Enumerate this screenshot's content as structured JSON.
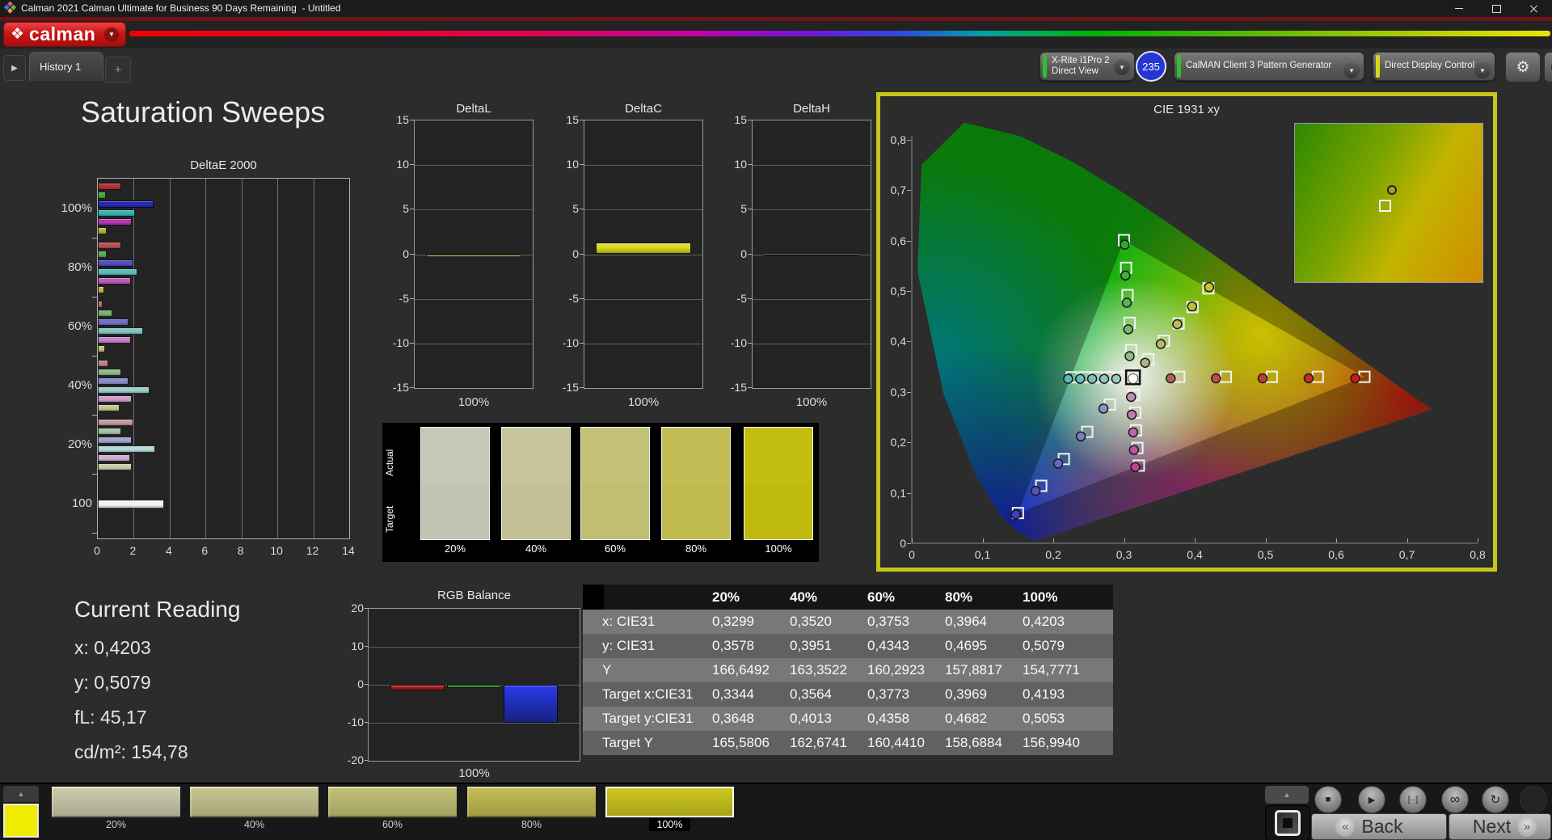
{
  "window": {
    "title": "Calman 2021 Calman Ultimate for Business 90 Days Remaining  - Untitled"
  },
  "brand": {
    "logo_text": "calman"
  },
  "tab_bar": {
    "history_tab": "History 1",
    "add_tab": "+"
  },
  "toolbar": {
    "meter": {
      "line1": "X-Rite i1Pro 2",
      "line2": "Direct View",
      "status_color": "#2fbf2f"
    },
    "meter_badge": "235",
    "pattern_generator": {
      "label": "CalMAN Client 3 Pattern Generator",
      "status_color": "#2fbf2f"
    },
    "display_control": {
      "label": "Direct Display Control",
      "status_color": "#d8d818"
    }
  },
  "page": {
    "title": "Saturation Sweeps"
  },
  "chart_data": [
    {
      "id": "deltaE2000",
      "type": "bar",
      "orientation": "horizontal",
      "title": "DeltaE 2000",
      "xlim": [
        0,
        14
      ],
      "xticks": [
        0,
        2,
        4,
        6,
        8,
        10,
        12,
        14
      ],
      "groups": [
        {
          "label": "100%",
          "bars": [
            {
              "c": "#b23535",
              "v": 1.3
            },
            {
              "c": "#3eae3e",
              "v": 0.45
            },
            {
              "c": "#2828b6",
              "v": 3.1
            },
            {
              "c": "#36b6b6",
              "v": 2.05
            },
            {
              "c": "#b636b6",
              "v": 1.9
            },
            {
              "c": "#b2b23c",
              "v": 0.5
            }
          ]
        },
        {
          "label": "80%",
          "bars": [
            {
              "c": "#b75353",
              "v": 1.3
            },
            {
              "c": "#58b158",
              "v": 0.5
            },
            {
              "c": "#5050c0",
              "v": 2.0
            },
            {
              "c": "#5cc0c0",
              "v": 2.2
            },
            {
              "c": "#c05cc0",
              "v": 1.85
            },
            {
              "c": "#b9b95c",
              "v": 0.35
            }
          ]
        },
        {
          "label": "60%",
          "bars": [
            {
              "c": "#b96c6c",
              "v": 0.25
            },
            {
              "c": "#73b573",
              "v": 0.8
            },
            {
              "c": "#7070c6",
              "v": 1.7
            },
            {
              "c": "#82c6c6",
              "v": 2.5
            },
            {
              "c": "#c682c6",
              "v": 1.85
            },
            {
              "c": "#bfbf76",
              "v": 0.4
            }
          ]
        },
        {
          "label": "40%",
          "bars": [
            {
              "c": "#bc8484",
              "v": 0.6
            },
            {
              "c": "#8dbc8d",
              "v": 1.3
            },
            {
              "c": "#8c8ccc",
              "v": 1.7
            },
            {
              "c": "#9ecfcf",
              "v": 2.9
            },
            {
              "c": "#cf9ecf",
              "v": 1.9
            },
            {
              "c": "#c5c58f",
              "v": 1.2
            }
          ]
        },
        {
          "label": "20%",
          "bars": [
            {
              "c": "#c49b9b",
              "v": 2.0
            },
            {
              "c": "#a5c3a5",
              "v": 1.3
            },
            {
              "c": "#a4a4d4",
              "v": 1.9
            },
            {
              "c": "#b7dada",
              "v": 3.2
            },
            {
              "c": "#d4aed4",
              "v": 1.8
            },
            {
              "c": "#cbcba6",
              "v": 1.9
            }
          ]
        },
        {
          "label": "100",
          "bars": [
            {
              "c": "#f2f2f2",
              "v": 3.7
            }
          ]
        }
      ]
    },
    {
      "id": "deltaL",
      "type": "bar",
      "title": "DeltaL",
      "ylim": [
        -15,
        15
      ],
      "yticks": [
        15,
        10,
        5,
        0,
        -5,
        -10,
        -15
      ],
      "category": "100%",
      "value": -0.3,
      "color": "#d2d21e"
    },
    {
      "id": "deltaC",
      "type": "bar",
      "title": "DeltaC",
      "ylim": [
        -15,
        15
      ],
      "yticks": [
        15,
        10,
        5,
        0,
        -5,
        -10,
        -15
      ],
      "category": "100%",
      "value": 1.3,
      "color": "#d2d21e"
    },
    {
      "id": "deltaH",
      "type": "bar",
      "title": "DeltaH",
      "ylim": [
        -15,
        15
      ],
      "yticks": [
        15,
        10,
        5,
        0,
        -5,
        -10,
        -15
      ],
      "category": "100%",
      "value": 0.0,
      "color": "#151515"
    },
    {
      "id": "cie1931",
      "type": "scatter",
      "title": "CIE 1931 xy",
      "xlim": [
        0,
        0.8
      ],
      "ylim": [
        0,
        0.8
      ],
      "xticks": [
        "0",
        "0,1",
        "0,2",
        "0,3",
        "0,4",
        "0,5",
        "0,6",
        "0,7",
        "0,8"
      ],
      "yticks": [
        "0,8",
        "0,7",
        "0,6",
        "0,5",
        "0,4",
        "0,3",
        "0,2",
        "0,1",
        "0"
      ],
      "gamut_triangle": [
        [
          0.64,
          0.33
        ],
        [
          0.3,
          0.6
        ],
        [
          0.15,
          0.06
        ]
      ],
      "white_point": {
        "target": [
          0.3127,
          0.329
        ],
        "measured": [
          0.3129,
          0.3264
        ]
      },
      "sweeps": [
        {
          "name": "red",
          "targets": [
            [
              0.378,
              0.33
            ],
            [
              0.444,
              0.33
            ],
            [
              0.509,
              0.33
            ],
            [
              0.574,
              0.33
            ],
            [
              0.64,
              0.33
            ]
          ],
          "measured": [
            [
              0.366,
              0.327
            ],
            [
              0.43,
              0.327
            ],
            [
              0.496,
              0.327
            ],
            [
              0.561,
              0.327
            ],
            [
              0.627,
              0.327
            ]
          ],
          "colors": [
            "#b46060",
            "#ba4e4e",
            "#c03c3c",
            "#c62a2a",
            "#cc1818"
          ]
        },
        {
          "name": "green",
          "targets": [
            [
              0.31,
              0.383
            ],
            [
              0.308,
              0.437
            ],
            [
              0.305,
              0.492
            ],
            [
              0.303,
              0.546
            ],
            [
              0.3,
              0.601
            ]
          ],
          "measured": [
            [
              0.308,
              0.371
            ],
            [
              0.306,
              0.424
            ],
            [
              0.304,
              0.477
            ],
            [
              0.302,
              0.531
            ],
            [
              0.301,
              0.592
            ]
          ],
          "colors": [
            "#8cbe8c",
            "#70ba70",
            "#54b654",
            "#38b238",
            "#26ae26"
          ]
        },
        {
          "name": "blue",
          "targets": [
            [
              0.28,
              0.275
            ],
            [
              0.248,
              0.221
            ],
            [
              0.215,
              0.167
            ],
            [
              0.183,
              0.114
            ],
            [
              0.15,
              0.06
            ]
          ],
          "measured": [
            [
              0.271,
              0.267
            ],
            [
              0.239,
              0.212
            ],
            [
              0.207,
              0.158
            ],
            [
              0.175,
              0.104
            ],
            [
              0.147,
              0.057
            ]
          ],
          "colors": [
            "#9090cc",
            "#7c7cc8",
            "#6868c4",
            "#5454c0",
            "#4040bc"
          ]
        },
        {
          "name": "cyan",
          "targets": [
            [
              0.295,
              0.329
            ],
            [
              0.278,
              0.329
            ],
            [
              0.261,
              0.329
            ],
            [
              0.244,
              0.329
            ],
            [
              0.226,
              0.329
            ]
          ],
          "measured": [
            [
              0.289,
              0.326
            ],
            [
              0.272,
              0.326
            ],
            [
              0.255,
              0.326
            ],
            [
              0.238,
              0.326
            ],
            [
              0.221,
              0.326
            ]
          ],
          "colors": [
            "#a2c8c4",
            "#90c4c0",
            "#7ec0bc",
            "#6cbcb8",
            "#5ab8b4"
          ]
        },
        {
          "name": "magenta",
          "targets": [
            [
              0.314,
              0.294
            ],
            [
              0.316,
              0.259
            ],
            [
              0.317,
              0.224
            ],
            [
              0.319,
              0.189
            ],
            [
              0.321,
              0.154
            ]
          ],
          "measured": [
            [
              0.31,
              0.29
            ],
            [
              0.311,
              0.255
            ],
            [
              0.313,
              0.22
            ],
            [
              0.314,
              0.185
            ],
            [
              0.316,
              0.151
            ]
          ],
          "colors": [
            "#c28eb6",
            "#c27ab0",
            "#c266aa",
            "#c252a4",
            "#c23e9e"
          ]
        },
        {
          "name": "yellow",
          "targets": [
            [
              0.3344,
              0.3648
            ],
            [
              0.3564,
              0.4013
            ],
            [
              0.3773,
              0.4358
            ],
            [
              0.3969,
              0.4682
            ],
            [
              0.4193,
              0.5053
            ]
          ],
          "measured": [
            [
              0.3299,
              0.3578
            ],
            [
              0.352,
              0.3951
            ],
            [
              0.3753,
              0.4343
            ],
            [
              0.3964,
              0.4695
            ],
            [
              0.4203,
              0.5079
            ]
          ],
          "colors": [
            "#b4b47e",
            "#b8b868",
            "#bcbc52",
            "#c0c03c",
            "#c6c626"
          ]
        }
      ],
      "inset": {
        "target": [
          0.4193,
          0.5053
        ],
        "measured": [
          0.4203,
          0.5079
        ],
        "measured_color": "#b0a020"
      }
    },
    {
      "id": "rgb_balance",
      "type": "bar",
      "title": "RGB Balance",
      "ylim": [
        -20,
        20
      ],
      "yticks": [
        20,
        10,
        0,
        -10,
        -20
      ],
      "categories": [
        "Red",
        "Green",
        "Blue"
      ],
      "values": [
        -1.5,
        -0.8,
        -10
      ],
      "colors": [
        "#d42020",
        "#28b028",
        "#2a3cec"
      ],
      "xlabel": "100%"
    }
  ],
  "swatch_strip": {
    "row_labels": [
      "Actual",
      "Target"
    ],
    "items": [
      {
        "label": "20%",
        "actual": "#c6c7b6",
        "target": "#c3c4b1"
      },
      {
        "label": "40%",
        "actual": "#c6c49a",
        "target": "#c3c195"
      },
      {
        "label": "60%",
        "actual": "#c3c277",
        "target": "#c0bf71"
      },
      {
        "label": "80%",
        "actual": "#c2be55",
        "target": "#bfbb4f"
      },
      {
        "label": "100%",
        "actual": "#c3bd12",
        "target": "#c0ba0e"
      }
    ]
  },
  "current_reading": {
    "title": "Current Reading",
    "lines": [
      "x: 0,4203",
      "y: 0,5079",
      "fL: 45,17",
      "cd/m²: 154,78"
    ]
  },
  "table": {
    "columns": [
      "20%",
      "40%",
      "60%",
      "80%",
      "100%"
    ],
    "rows": [
      {
        "label": "x: CIE31",
        "values": [
          "0,3299",
          "0,3520",
          "0,3753",
          "0,3964",
          "0,4203"
        ]
      },
      {
        "label": "y: CIE31",
        "values": [
          "0,3578",
          "0,3951",
          "0,4343",
          "0,4695",
          "0,5079"
        ]
      },
      {
        "label": "Y",
        "values": [
          "166,6492",
          "163,3522",
          "160,2923",
          "157,8817",
          "154,7771"
        ]
      },
      {
        "label": "Target x:CIE31",
        "values": [
          "0,3344",
          "0,3564",
          "0,3773",
          "0,3969",
          "0,4193"
        ]
      },
      {
        "label": "Target y:CIE31",
        "values": [
          "0,3648",
          "0,4013",
          "0,4358",
          "0,4682",
          "0,5053"
        ]
      },
      {
        "label": "Target Y",
        "values": [
          "165,5806",
          "162,6741",
          "160,4410",
          "158,6884",
          "156,9940"
        ]
      }
    ]
  },
  "bottom_bar": {
    "pattern_color": "#f0ee00",
    "swatches": [
      {
        "label": "20%",
        "color": "#cdcdad",
        "active": false
      },
      {
        "label": "40%",
        "color": "#c9c791",
        "active": false
      },
      {
        "label": "60%",
        "color": "#c5c375",
        "active": false
      },
      {
        "label": "80%",
        "color": "#c3be55",
        "active": false
      },
      {
        "label": "100%",
        "color": "#cdc71d",
        "active": true
      }
    ],
    "transport": [
      "stop",
      "play",
      "frames",
      "loop",
      "refresh"
    ],
    "back_label": "Back",
    "next_label": "Next",
    "back_icon": "«",
    "next_icon": "»"
  }
}
